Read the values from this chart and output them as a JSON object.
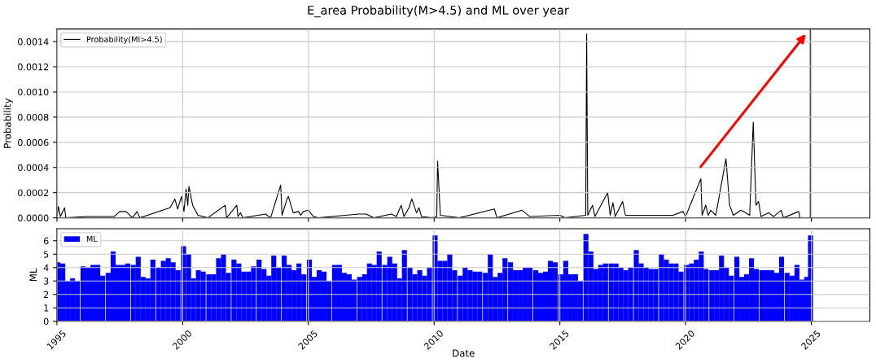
{
  "chart_data": [
    {
      "type": "line",
      "title": "E_area Probability(M>4.5) and ML over year",
      "ylabel": "Probability",
      "legend": "top left",
      "grid": true,
      "tick_labels": "y",
      "xlim": [
        "1995-01-01",
        "2027-05-01"
      ],
      "xticks": [
        "1995",
        "2000",
        "2005",
        "2010",
        "2015",
        "2020",
        "2025"
      ],
      "ylim": [
        0,
        0.0015
      ],
      "yticks": [
        {
          "value": 0,
          "label": "0.0000"
        },
        {
          "value": 0.0002,
          "label": "0.0002"
        },
        {
          "value": 0.0004,
          "label": "0.0004"
        },
        {
          "value": 0.0006,
          "label": "0.0006"
        },
        {
          "value": 0.0008,
          "label": "0.0008"
        },
        {
          "value": 0.001,
          "label": "0.0010"
        },
        {
          "value": 0.0012,
          "label": "0.0012"
        },
        {
          "value": 0.0014,
          "label": "0.0014"
        }
      ],
      "ref_lines": [
        {
          "axis": "x",
          "value": "2024-12-20",
          "color": "#555555"
        }
      ],
      "x": [
        "1995-01-01",
        "1995-01-22",
        "1995-02-20",
        "1995-04-22",
        "1995-05-10",
        "1996-03-10",
        "1997-04-10",
        "1997-07-01",
        "1997-10-01",
        "1998-01-01",
        "1998-03-10",
        "1998-04-20",
        "1999-07-01",
        "1999-09-10",
        "1999-10-20",
        "1999-12-15",
        "2000-01-20",
        "2000-02-20",
        "2000-03-15",
        "2000-04-01",
        "2000-05-25",
        "2000-08-10",
        "2001-01-01",
        "2001-09-10",
        "2001-10-01",
        "2002-02-25",
        "2002-03-15",
        "2002-04-20",
        "2002-05-25",
        "2003-04-20",
        "2003-07-01",
        "2003-11-25",
        "2003-12-15",
        "2004-02-25",
        "2004-03-15",
        "2004-05-25",
        "2004-08-10",
        "2004-09-10",
        "2004-10-20",
        "2005-01-01",
        "2005-03-15",
        "2005-05-25",
        "2007-01-01",
        "2007-04-20",
        "2007-08-10",
        "2008-04-20",
        "2008-07-01",
        "2008-09-10",
        "2008-10-20",
        "2009-01-01",
        "2009-02-10",
        "2009-04-20",
        "2009-05-25",
        "2009-07-01",
        "2009-12-01",
        "2010-02-08",
        "2010-02-20",
        "2010-04-01",
        "2011-01-01",
        "2012-05-25",
        "2012-07-01",
        "2013-07-01",
        "2013-10-20",
        "2015-01-01",
        "2015-03-15",
        "2016-01-12",
        "2016-01-25",
        "2016-02-10",
        "2016-04-20",
        "2016-05-25",
        "2016-11-25",
        "2017-01-01",
        "2017-02-10",
        "2017-03-15",
        "2017-07-01",
        "2017-08-10",
        "2018-07-01",
        "2019-07-01",
        "2019-11-25",
        "2020-01-01",
        "2020-08-10",
        "2020-08-28",
        "2020-10-20",
        "2020-11-25",
        "2021-01-01",
        "2021-03-15",
        "2021-08-10",
        "2021-10-01",
        "2021-11-25",
        "2022-03-15",
        "2022-05-25",
        "2022-07-20",
        "2022-09-10",
        "2022-10-20",
        "2022-11-25",
        "2023-01-01",
        "2023-04-20",
        "2023-07-01",
        "2023-10-20",
        "2023-11-25",
        "2024-07-01",
        "2024-07-20",
        "2024-12-15"
      ],
      "series": [
        {
          "name": "Probability(Ml>4.5)",
          "color": "#000000",
          "values": [
            0,
            9e-05,
            1e-05,
            8e-05,
            0,
            1e-05,
            1e-05,
            5e-05,
            5e-05,
            0,
            5e-05,
            0,
            8e-05,
            0.00015,
            7e-05,
            0.00017,
            5e-05,
            0.00023,
            0.0001,
            0.00025,
            0.0001,
            2e-05,
            0,
            0.0001,
            0,
            0.0001,
            1e-05,
            4e-05,
            0,
            3e-05,
            0,
            0.00026,
            2e-05,
            0.00015,
            0.00017,
            4e-05,
            5e-05,
            2e-05,
            5e-05,
            6e-05,
            1e-05,
            0,
            3e-05,
            3e-05,
            0,
            3e-05,
            1e-05,
            0.0001,
            1e-05,
            8e-05,
            0.00015,
            4e-05,
            8e-05,
            1e-05,
            0,
            1e-05,
            0.00045,
            2e-05,
            0,
            7e-05,
            0,
            6e-05,
            1e-05,
            2e-05,
            0,
            2e-05,
            0.00146,
            2e-05,
            0.0001,
            1e-05,
            0.0002,
            2e-05,
            0.00012,
            1e-05,
            0.00013,
            2e-05,
            2e-05,
            2e-05,
            5e-05,
            1e-05,
            0.00031,
            2e-05,
            0.0001,
            2e-05,
            6e-05,
            2e-05,
            0.00047,
            0.0001,
            2e-05,
            6e-05,
            4e-05,
            2e-05,
            0.00076,
            0.0001,
            0.00013,
            1e-05,
            4e-05,
            1e-05,
            6e-05,
            0,
            5e-05,
            0,
            0
          ]
        }
      ]
    },
    {
      "type": "bar",
      "ylabel": "ML",
      "xlabel": "Date",
      "legend": "top left",
      "grid": true,
      "xlim": [
        "1995-01-01",
        "2027-05-01"
      ],
      "xticks": [
        "1995",
        "2000",
        "2005",
        "2010",
        "2015",
        "2020",
        "2025"
      ],
      "ylim": [
        0,
        6.9
      ],
      "yticks": [
        0,
        1,
        2,
        3,
        4,
        5,
        6
      ],
      "x": [
        "1995-01-15",
        "1995-03-27",
        "1995-06-06",
        "1995-08-16",
        "1995-10-26",
        "1996-01-15",
        "1996-03-27",
        "1996-06-06",
        "1996-08-16",
        "1996-10-26",
        "1997-01-15",
        "1997-03-27",
        "1997-06-06",
        "1997-08-16",
        "1997-10-26",
        "1998-01-15",
        "1998-03-27",
        "1998-06-06",
        "1998-08-16",
        "1998-10-26",
        "1999-01-15",
        "1999-03-27",
        "1999-06-06",
        "1999-08-16",
        "1999-10-26",
        "2000-01-15",
        "2000-03-27",
        "2000-06-06",
        "2000-08-16",
        "2000-10-26",
        "2001-01-15",
        "2001-03-27",
        "2001-06-06",
        "2001-08-16",
        "2001-10-26",
        "2002-01-15",
        "2002-03-27",
        "2002-06-06",
        "2002-08-16",
        "2002-10-26",
        "2003-01-15",
        "2003-03-27",
        "2003-06-06",
        "2003-08-16",
        "2003-10-26",
        "2004-01-15",
        "2004-03-27",
        "2004-06-06",
        "2004-08-16",
        "2004-10-26",
        "2005-01-15",
        "2005-03-27",
        "2005-06-06",
        "2005-08-16",
        "2005-10-26",
        "2006-01-15",
        "2006-03-27",
        "2006-06-06",
        "2006-08-16",
        "2006-10-26",
        "2007-01-15",
        "2007-03-27",
        "2007-06-06",
        "2007-08-16",
        "2007-10-26",
        "2008-01-15",
        "2008-03-27",
        "2008-06-06",
        "2008-08-16",
        "2008-10-26",
        "2009-01-15",
        "2009-03-27",
        "2009-06-06",
        "2009-08-16",
        "2009-10-26",
        "2010-01-15",
        "2010-03-27",
        "2010-06-06",
        "2010-08-16",
        "2010-10-26",
        "2011-01-15",
        "2011-03-27",
        "2011-06-06",
        "2011-08-16",
        "2011-10-26",
        "2012-01-15",
        "2012-03-27",
        "2012-06-06",
        "2012-08-16",
        "2012-10-26",
        "2013-01-15",
        "2013-03-27",
        "2013-06-06",
        "2013-08-16",
        "2013-10-26",
        "2014-01-15",
        "2014-03-27",
        "2014-06-06",
        "2014-08-16",
        "2014-10-26",
        "2015-01-15",
        "2015-03-27",
        "2015-06-06",
        "2015-08-16",
        "2015-10-26",
        "2016-01-15",
        "2016-03-27",
        "2016-06-06",
        "2016-08-16",
        "2016-10-26",
        "2017-01-15",
        "2017-03-27",
        "2017-06-06",
        "2017-08-16",
        "2017-10-26",
        "2018-01-15",
        "2018-03-27",
        "2018-06-06",
        "2018-08-16",
        "2018-10-26",
        "2019-01-15",
        "2019-03-27",
        "2019-06-06",
        "2019-08-16",
        "2019-10-26",
        "2020-01-15",
        "2020-03-27",
        "2020-06-06",
        "2020-08-16",
        "2020-10-26",
        "2021-01-15",
        "2021-03-27",
        "2021-06-06",
        "2021-08-16",
        "2021-10-26",
        "2022-01-15",
        "2022-03-27",
        "2022-06-06",
        "2022-08-16",
        "2022-10-26",
        "2023-01-15",
        "2023-03-27",
        "2023-06-06",
        "2023-08-16",
        "2023-10-26",
        "2024-01-15",
        "2024-03-27",
        "2024-06-06",
        "2024-08-16",
        "2024-10-26",
        "2024-12-20"
      ],
      "series": [
        {
          "name": "ML",
          "color": "#0000ff",
          "values": [
            4.4,
            4.3,
            3.0,
            3.2,
            3.0,
            4.1,
            4.0,
            4.2,
            4.2,
            3.4,
            3.6,
            5.2,
            4.2,
            4.2,
            4.3,
            4.2,
            4.8,
            3.3,
            3.2,
            4.6,
            4.0,
            4.5,
            4.7,
            4.4,
            3.8,
            5.6,
            5.0,
            3.2,
            3.8,
            3.7,
            3.5,
            3.5,
            4.7,
            5.0,
            3.6,
            4.6,
            4.3,
            3.7,
            3.7,
            4.1,
            4.6,
            3.9,
            3.4,
            4.9,
            4.0,
            4.9,
            4.2,
            3.8,
            4.3,
            3.5,
            4.6,
            3.3,
            3.8,
            3.7,
            3.0,
            4.2,
            4.2,
            3.6,
            3.5,
            3.1,
            3.3,
            3.5,
            4.3,
            4.2,
            5.2,
            4.2,
            4.8,
            4.3,
            3.2,
            5.3,
            4.0,
            3.5,
            3.8,
            3.4,
            4.0,
            6.4,
            4.5,
            4.5,
            5.0,
            3.8,
            3.4,
            4.0,
            3.8,
            3.7,
            3.7,
            3.6,
            5.0,
            3.3,
            3.6,
            4.7,
            4.4,
            3.8,
            3.8,
            4.0,
            4.0,
            3.8,
            3.6,
            3.7,
            4.5,
            4.4,
            3.5,
            4.5,
            3.5,
            3.5,
            3.0,
            6.5,
            5.2,
            3.9,
            4.2,
            4.3,
            4.3,
            4.3,
            4.0,
            3.8,
            4.0,
            5.3,
            4.3,
            4.0,
            3.9,
            3.9,
            5.0,
            4.6,
            4.3,
            4.3,
            3.7,
            4.2,
            4.3,
            4.6,
            5.2,
            3.9,
            3.8,
            3.8,
            4.9,
            4.0,
            3.4,
            4.8,
            3.3,
            3.5,
            4.7,
            3.9,
            3.8,
            3.8,
            3.8,
            3.6,
            4.8,
            3.6,
            3.4,
            4.2,
            3.1,
            3.3,
            6.4
          ]
        }
      ]
    }
  ]
}
